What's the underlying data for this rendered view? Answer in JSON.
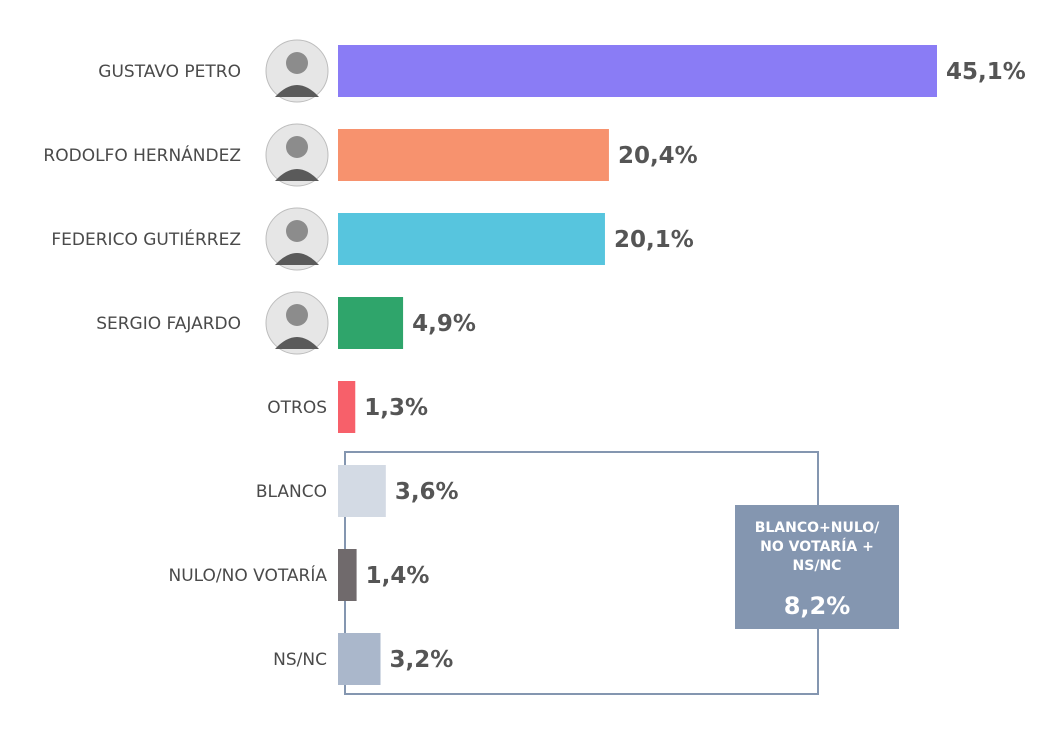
{
  "chart_data": {
    "type": "bar",
    "orientation": "horizontal",
    "categories": [
      "GUSTAVO PETRO",
      "RODOLFO HERNÁNDEZ",
      "FEDERICO GUTIÉRREZ",
      "SERGIO FAJARDO",
      "OTROS",
      "BLANCO",
      "NULO/NO VOTARÍA",
      "NS/NC"
    ],
    "values": [
      45.1,
      20.4,
      20.1,
      4.9,
      1.3,
      3.6,
      1.4,
      3.2
    ],
    "value_labels": [
      "45,1%",
      "20,4%",
      "20,1%",
      "4,9%",
      "1,3%",
      "3,6%",
      "1,4%",
      "3,2%"
    ],
    "colors": [
      "#8a7cf5",
      "#f7926e",
      "#57c5de",
      "#2fa56b",
      "#f7606a",
      "#d3dae4",
      "#706a6c",
      "#aab7cb"
    ],
    "photo_icons": [
      "person-photo-icon",
      "person-photo-icon",
      "person-photo-icon",
      "person-photo-icon",
      "",
      "",
      "",
      ""
    ],
    "group_box": {
      "members": [
        "BLANCO",
        "NULO/NO VOTARÍA",
        "NS/NC"
      ],
      "label_lines": [
        "BLANCO+NULO/",
        "NO VOTARÍA +",
        "NS/NC"
      ],
      "value_label": "8,2%",
      "color": "#8496b0"
    },
    "title": "",
    "xlabel": "",
    "ylabel": "",
    "grid": false,
    "legend": "none"
  }
}
